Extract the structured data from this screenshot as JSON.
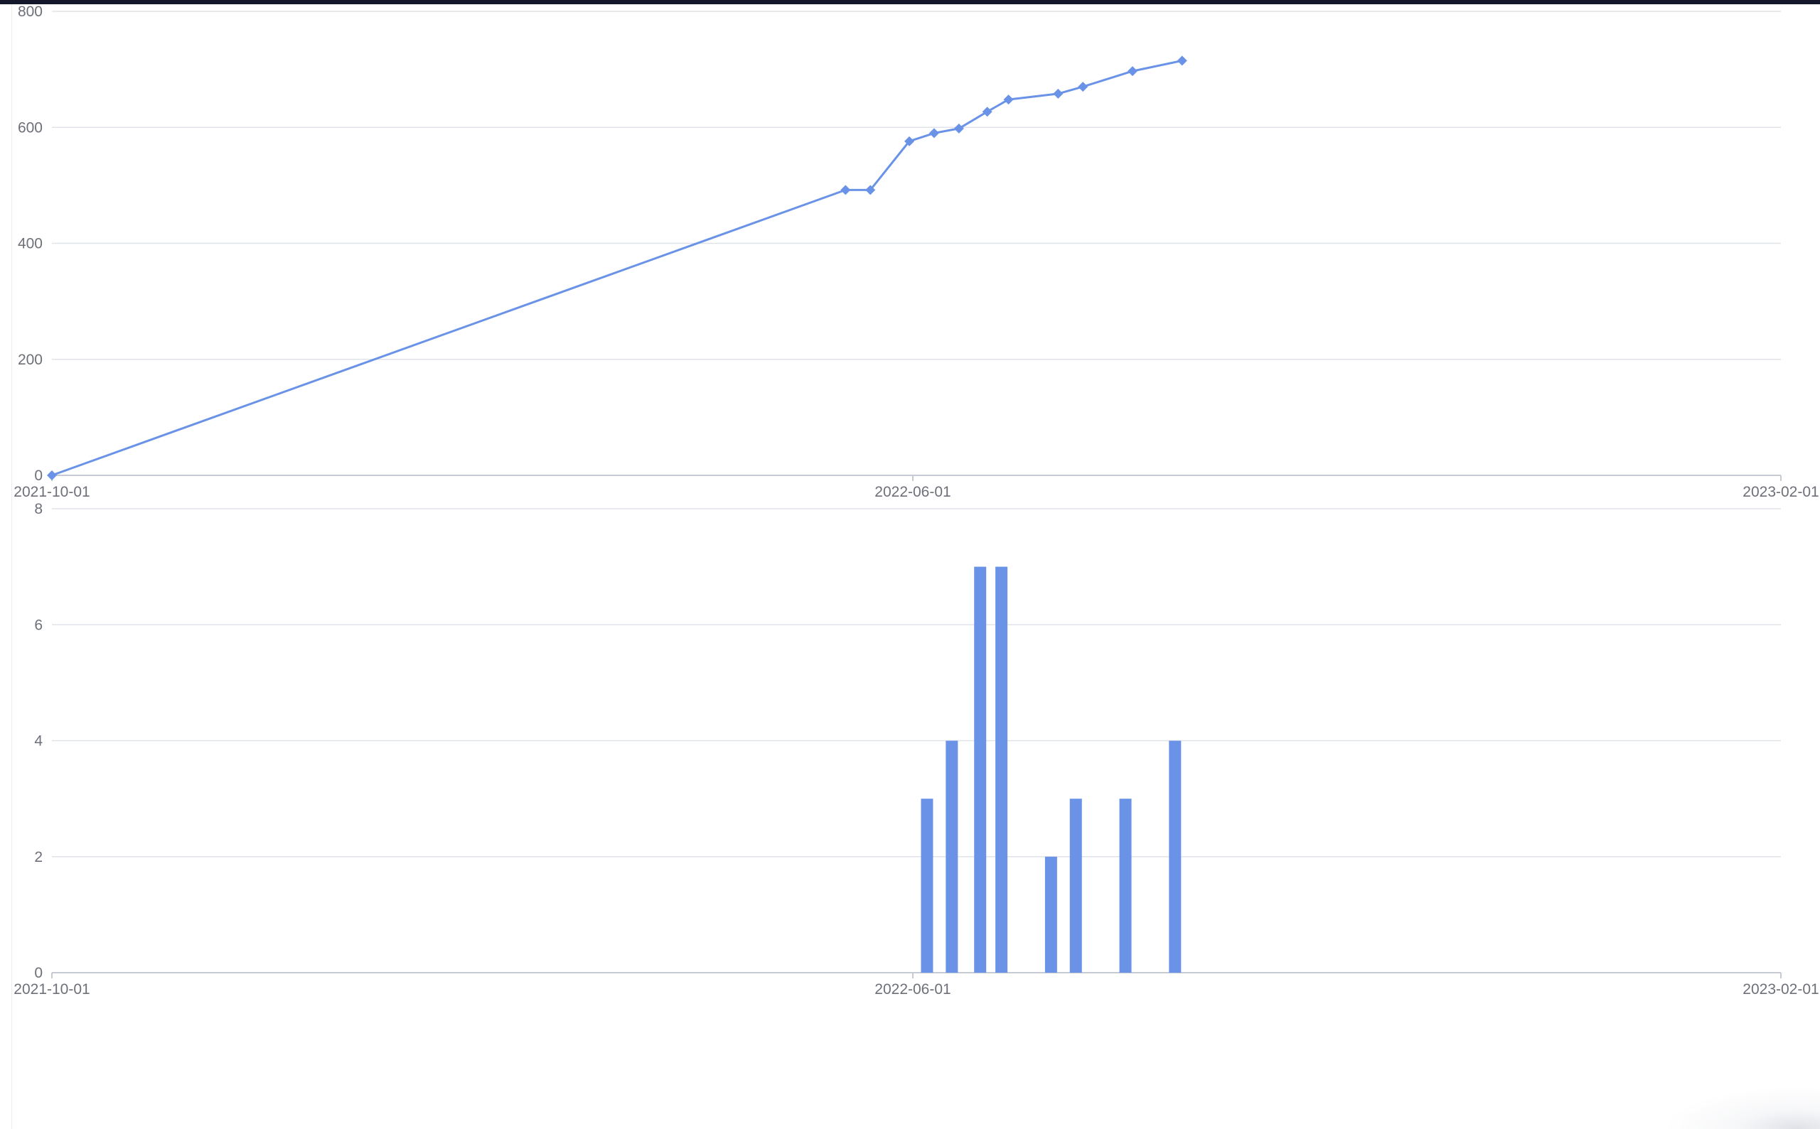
{
  "colors": {
    "series": "#6a93e8",
    "grid": "#e0e3e8",
    "axis": "#c6cad3",
    "text": "#6e7079"
  },
  "chart_data": [
    {
      "type": "line",
      "title": "",
      "xlabel": "",
      "ylabel": "",
      "x_axis": {
        "type": "date",
        "min": "2021-10-01",
        "max": "2023-02-01",
        "ticks": [
          "2021-10-01",
          "2022-06-01",
          "2023-02-01"
        ]
      },
      "y_axis": {
        "min": 0,
        "max": 800,
        "ticks": [
          0,
          200,
          400,
          600,
          800
        ]
      },
      "grid": true,
      "legend": "none",
      "marker": "diamond",
      "series": [
        {
          "points": [
            {
              "x": "2021-10-01",
              "y": 0
            },
            {
              "x": "2022-05-13",
              "y": 492
            },
            {
              "x": "2022-05-20",
              "y": 492
            },
            {
              "x": "2022-05-31",
              "y": 576
            },
            {
              "x": "2022-06-07",
              "y": 590
            },
            {
              "x": "2022-06-14",
              "y": 598
            },
            {
              "x": "2022-06-22",
              "y": 627
            },
            {
              "x": "2022-06-28",
              "y": 648
            },
            {
              "x": "2022-07-12",
              "y": 658
            },
            {
              "x": "2022-07-19",
              "y": 670
            },
            {
              "x": "2022-08-02",
              "y": 697
            },
            {
              "x": "2022-08-16",
              "y": 715
            }
          ]
        }
      ]
    },
    {
      "type": "bar",
      "title": "",
      "xlabel": "",
      "ylabel": "",
      "x_axis": {
        "type": "date",
        "min": "2021-10-01",
        "max": "2023-02-01",
        "ticks": [
          "2021-10-01",
          "2022-06-01",
          "2023-02-01"
        ]
      },
      "y_axis": {
        "min": 0,
        "max": 8,
        "ticks": [
          0,
          2,
          4,
          6,
          8
        ]
      },
      "grid": true,
      "legend": "none",
      "series": [
        {
          "points": [
            {
              "x": "2022-06-05",
              "y": 3
            },
            {
              "x": "2022-06-12",
              "y": 4
            },
            {
              "x": "2022-06-20",
              "y": 7
            },
            {
              "x": "2022-06-26",
              "y": 7
            },
            {
              "x": "2022-07-10",
              "y": 2
            },
            {
              "x": "2022-07-17",
              "y": 3
            },
            {
              "x": "2022-07-31",
              "y": 3
            },
            {
              "x": "2022-08-14",
              "y": 4
            }
          ]
        }
      ]
    }
  ]
}
